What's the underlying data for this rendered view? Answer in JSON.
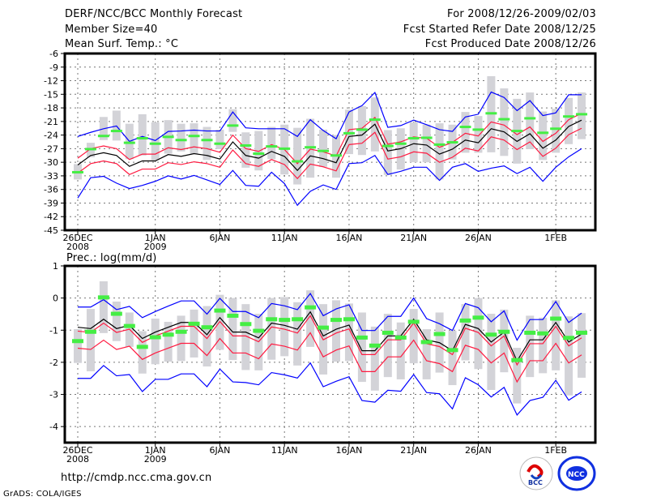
{
  "header": {
    "title": "DERF/NCC/BCC Monthly Forecast",
    "member_size": "Member Size=40",
    "variable": "Mean Surf. Temp.: °C",
    "period": "For 2008/12/26-2009/02/03",
    "started": "Fcst Started Refer Date 2008/12/25",
    "produced": "Fcst Produced Date 2008/12/26"
  },
  "footer": {
    "url": "http://cmdp.ncc.cma.gov.cn",
    "credit": "GrADS: COLA/IGES",
    "logo_left": "BCC",
    "logo_right": "NCC"
  },
  "colors": {
    "mean": "#000000",
    "spread_inner": "#ff1a40",
    "spread_outer": "#0000ff",
    "median": "#44ee44",
    "box": "#d3d3d8"
  },
  "chart_data": [
    {
      "type": "line",
      "title": "Mean Surf. Temp.: °C",
      "ylim": [
        -45,
        -6
      ],
      "yticks": [
        -6,
        -9,
        -12,
        -15,
        -18,
        -21,
        -24,
        -27,
        -30,
        -33,
        -36,
        -39,
        -42,
        -45
      ],
      "xticks": [
        {
          "day": 0,
          "label": "26DEC",
          "sub": "2008"
        },
        {
          "day": 6,
          "label": "1JAN",
          "sub": "2009"
        },
        {
          "day": 11,
          "label": "6JAN",
          "sub": ""
        },
        {
          "day": 16,
          "label": "11JAN",
          "sub": ""
        },
        {
          "day": 21,
          "label": "16JAN",
          "sub": ""
        },
        {
          "day": 26,
          "label": "21JAN",
          "sub": ""
        },
        {
          "day": 31,
          "label": "26JAN",
          "sub": ""
        },
        {
          "day": 37,
          "label": "1FEB",
          "sub": ""
        }
      ],
      "series": [
        {
          "name": "mean",
          "values": [
            -30.6,
            -28.5,
            -27.9,
            -28.5,
            -30.9,
            -29.7,
            -29.7,
            -28.3,
            -28.7,
            -28.1,
            -28.5,
            -29.3,
            -25.5,
            -28.5,
            -29.1,
            -27.6,
            -28.7,
            -31.8,
            -28.6,
            -29.2,
            -30.1,
            -24.3,
            -24.0,
            -21.6,
            -27.5,
            -27.0,
            -25.9,
            -26.2,
            -28.2,
            -27.1,
            -25.1,
            -25.7,
            -22.6,
            -23.3,
            -25.4,
            -23.7,
            -26.9,
            -25.1,
            -22.1,
            -20.7
          ]
        },
        {
          "name": "inner_upper",
          "values": [
            -29.1,
            -27.0,
            -26.4,
            -27.0,
            -29.4,
            -28.2,
            -28.2,
            -26.8,
            -27.2,
            -26.6,
            -27.0,
            -27.8,
            -24.0,
            -27.0,
            -27.6,
            -26.1,
            -27.2,
            -30.3,
            -27.1,
            -27.7,
            -28.6,
            -22.8,
            -22.5,
            -20.1,
            -26.0,
            -25.5,
            -24.4,
            -24.7,
            -26.7,
            -25.6,
            -23.6,
            -24.2,
            -21.1,
            -21.8,
            -23.9,
            -22.2,
            -25.4,
            -23.6,
            -20.6,
            -19.2
          ]
        },
        {
          "name": "inner_lower",
          "values": [
            -32.4,
            -30.3,
            -29.7,
            -30.3,
            -32.7,
            -31.5,
            -31.5,
            -30.1,
            -30.5,
            -29.9,
            -30.3,
            -31.1,
            -27.3,
            -30.3,
            -30.9,
            -29.4,
            -30.5,
            -33.6,
            -30.4,
            -31.0,
            -31.9,
            -26.1,
            -25.8,
            -23.4,
            -29.3,
            -28.8,
            -27.7,
            -28.0,
            -30.0,
            -28.9,
            -26.9,
            -27.5,
            -24.4,
            -25.1,
            -27.2,
            -25.5,
            -28.7,
            -26.9,
            -23.9,
            -22.5
          ]
        },
        {
          "name": "outer_upper",
          "values": [
            -24.3,
            -23.4,
            -22.6,
            -22.0,
            -25.4,
            -24.3,
            -25.2,
            -23.2,
            -23.1,
            -22.9,
            -23.1,
            -23.1,
            -18.9,
            -22.4,
            -22.6,
            -22.6,
            -22.6,
            -24.3,
            -20.6,
            -23.0,
            -24.8,
            -18.9,
            -17.5,
            -14.6,
            -22.3,
            -21.9,
            -20.7,
            -21.7,
            -22.8,
            -23.2,
            -20.0,
            -19.4,
            -14.5,
            -15.7,
            -18.6,
            -16.4,
            -19.7,
            -19.1,
            -15.1,
            -15.1
          ]
        },
        {
          "name": "outer_lower",
          "values": [
            -37.9,
            -33.4,
            -33.1,
            -34.6,
            -35.8,
            -35.1,
            -34.2,
            -33.0,
            -33.7,
            -32.9,
            -33.9,
            -34.9,
            -31.8,
            -35.1,
            -35.3,
            -32.2,
            -34.7,
            -39.5,
            -36.4,
            -35.0,
            -36.0,
            -30.3,
            -30.1,
            -28.5,
            -32.7,
            -32.0,
            -31.1,
            -31.1,
            -34.0,
            -31.1,
            -30.3,
            -32.0,
            -31.3,
            -30.8,
            -32.5,
            -31.1,
            -34.2,
            -31.1,
            -28.8,
            -27.0
          ]
        },
        {
          "name": "median",
          "values": [
            -32.2,
            -27.1,
            -24.2,
            -23.1,
            -25.7,
            -24.7,
            -25.9,
            -24.4,
            -25.1,
            -24.2,
            -25.1,
            -25.9,
            -21.9,
            -26.3,
            -28.1,
            -26.5,
            -27.0,
            -29.8,
            -26.7,
            -27.5,
            -28.5,
            -23.6,
            -22.8,
            -20.6,
            -26.4,
            -25.9,
            -24.7,
            -24.6,
            -26.1,
            -25.6,
            -22.2,
            -22.8,
            -19.2,
            -20.5,
            -23.1,
            -20.3,
            -23.5,
            -22.6,
            -19.9,
            -19.4
          ]
        }
      ],
      "box_high": [
        -30.4,
        -25.7,
        -20.0,
        -18.6,
        -21.5,
        -19.4,
        -21.2,
        -20.7,
        -21.5,
        -21.4,
        -22.2,
        -22.8,
        -18.3,
        -23.4,
        -23.1,
        -22.2,
        -21.7,
        -22.4,
        -20.4,
        -22.8,
        -24.0,
        -18.4,
        -17.6,
        -15.7,
        -22.9,
        -22.5,
        -21.2,
        -21.7,
        -21.4,
        -21.7,
        -18.9,
        -19.8,
        -11.0,
        -13.7,
        -16.0,
        -14.6,
        -18.8,
        -18.2,
        -15.8,
        -14.6
      ],
      "box_low": [
        -33.8,
        -28.9,
        -25.1,
        -25.2,
        -29.3,
        -28.5,
        -29.5,
        -28.1,
        -27.6,
        -28.1,
        -29.5,
        -27.1,
        -23.3,
        -31.2,
        -31.8,
        -29.3,
        -32.7,
        -34.9,
        -33.4,
        -31.0,
        -33.4,
        -28.2,
        -28.4,
        -27.6,
        -32.8,
        -31.6,
        -30.0,
        -30.0,
        -33.8,
        -29.4,
        -27.9,
        -27.9,
        -27.8,
        -28.6,
        -30.3,
        -27.1,
        -29.5,
        -27.9,
        -26.0,
        -24.9
      ]
    },
    {
      "type": "line",
      "title": "Prec.: log(mm/d)",
      "ylim": [
        -4.5,
        1
      ],
      "yticks": [
        1,
        0,
        -1,
        -2,
        -3,
        -4
      ],
      "xticks": [
        {
          "day": 0,
          "label": "26DEC",
          "sub": "2008"
        },
        {
          "day": 6,
          "label": "1JAN",
          "sub": "2009"
        },
        {
          "day": 11,
          "label": "6JAN",
          "sub": ""
        },
        {
          "day": 16,
          "label": "11JAN",
          "sub": ""
        },
        {
          "day": 21,
          "label": "16JAN",
          "sub": ""
        },
        {
          "day": 26,
          "label": "21JAN",
          "sub": ""
        },
        {
          "day": 31,
          "label": "26JAN",
          "sub": ""
        },
        {
          "day": 37,
          "label": "1FEB",
          "sub": ""
        }
      ],
      "series": [
        {
          "name": "mean",
          "values": [
            -0.91,
            -0.95,
            -0.66,
            -0.95,
            -0.85,
            -1.26,
            -1.06,
            -0.91,
            -0.76,
            -0.76,
            -1.14,
            -0.61,
            -1.06,
            -1.06,
            -1.24,
            -0.78,
            -0.85,
            -0.97,
            -0.43,
            -1.18,
            -0.97,
            -0.84,
            -1.64,
            -1.64,
            -1.18,
            -1.18,
            -0.66,
            -1.3,
            -1.39,
            -1.64,
            -0.82,
            -0.95,
            -1.37,
            -1.06,
            -1.96,
            -1.3,
            -1.3,
            -0.76,
            -1.37,
            -1.12
          ]
        },
        {
          "name": "inner_upper",
          "values": [
            -1.03,
            -1.07,
            -0.78,
            -1.07,
            -0.97,
            -1.38,
            -1.18,
            -1.03,
            -0.88,
            -0.88,
            -1.26,
            -0.73,
            -1.18,
            -1.18,
            -1.36,
            -0.9,
            -0.97,
            -1.09,
            -0.55,
            -1.3,
            -1.09,
            -0.96,
            -1.76,
            -1.76,
            -1.3,
            -1.3,
            -0.78,
            -1.42,
            -1.51,
            -1.76,
            -0.94,
            -1.07,
            -1.49,
            -1.18,
            -2.08,
            -1.42,
            -1.42,
            -0.88,
            -1.49,
            -1.24
          ]
        },
        {
          "name": "inner_lower",
          "values": [
            -1.56,
            -1.6,
            -1.31,
            -1.6,
            -1.5,
            -1.91,
            -1.71,
            -1.56,
            -1.41,
            -1.41,
            -1.79,
            -1.26,
            -1.71,
            -1.71,
            -1.89,
            -1.43,
            -1.5,
            -1.62,
            -1.08,
            -1.83,
            -1.62,
            -1.49,
            -2.29,
            -2.29,
            -1.83,
            -1.83,
            -1.31,
            -1.95,
            -2.04,
            -2.29,
            -1.47,
            -1.6,
            -2.02,
            -1.71,
            -2.61,
            -1.95,
            -1.95,
            -1.41,
            -2.02,
            -1.77
          ]
        },
        {
          "name": "outer_upper",
          "values": [
            -0.28,
            -0.28,
            -0.05,
            -0.36,
            -0.26,
            -0.61,
            -0.42,
            -0.25,
            -0.09,
            -0.09,
            -0.5,
            -0.01,
            -0.42,
            -0.42,
            -0.61,
            -0.17,
            -0.24,
            -0.36,
            0.14,
            -0.55,
            -0.34,
            -0.21,
            -1.01,
            -1.01,
            -0.57,
            -0.57,
            0.0,
            -0.64,
            -0.8,
            -1.01,
            -0.17,
            -0.3,
            -0.74,
            -0.4,
            -1.31,
            -0.67,
            -0.67,
            -0.11,
            -0.76,
            -0.47
          ]
        },
        {
          "name": "outer_lower",
          "values": [
            -2.5,
            -2.5,
            -2.1,
            -2.42,
            -2.38,
            -2.91,
            -2.53,
            -2.53,
            -2.36,
            -2.36,
            -2.76,
            -2.21,
            -2.61,
            -2.63,
            -2.7,
            -2.32,
            -2.39,
            -2.49,
            -2.02,
            -2.76,
            -2.59,
            -2.45,
            -3.19,
            -3.24,
            -2.87,
            -2.9,
            -2.38,
            -2.94,
            -2.98,
            -3.45,
            -2.48,
            -2.7,
            -3.08,
            -2.78,
            -3.64,
            -3.19,
            -3.09,
            -2.56,
            -3.18,
            -2.92
          ]
        },
        {
          "name": "median",
          "values": [
            -1.34,
            -1.05,
            0.02,
            -0.49,
            -0.87,
            -1.52,
            -1.22,
            -1.14,
            -1.05,
            -0.8,
            -0.91,
            -0.39,
            -0.55,
            -0.81,
            -1.02,
            -0.66,
            -0.68,
            -0.66,
            -0.29,
            -0.92,
            -0.68,
            -0.66,
            -1.23,
            -1.48,
            -1.08,
            -1.23,
            -0.74,
            -1.37,
            -1.12,
            -1.62,
            -0.7,
            -0.61,
            -1.14,
            -1.05,
            -1.93,
            -1.08,
            -1.1,
            -0.64,
            -1.24,
            -1.08
          ]
        }
      ],
      "box_high": [
        -0.97,
        -0.34,
        0.52,
        -0.11,
        -0.45,
        -1.03,
        -0.64,
        -0.74,
        -0.55,
        -0.36,
        -0.25,
        0.1,
        0.0,
        -0.19,
        -0.49,
        0.0,
        0.03,
        -0.13,
        0.24,
        -0.19,
        -0.07,
        -0.17,
        -0.45,
        -0.89,
        -0.49,
        -0.76,
        -0.34,
        -0.97,
        -0.45,
        -1.02,
        -0.19,
        0.0,
        -0.49,
        -0.36,
        -1.55,
        -0.55,
        -0.61,
        -0.07,
        -0.57,
        -0.47
      ],
      "box_low": [
        -2.02,
        -2.28,
        -1.09,
        -1.34,
        -1.52,
        -2.35,
        -2.06,
        -1.98,
        -1.96,
        -1.85,
        -2.13,
        -1.61,
        -1.93,
        -2.24,
        -2.25,
        -1.92,
        -1.81,
        -2.1,
        -1.52,
        -2.38,
        -1.98,
        -1.96,
        -2.61,
        -2.88,
        -2.46,
        -2.53,
        -2.03,
        -2.53,
        -2.32,
        -2.71,
        -1.94,
        -2.21,
        -2.86,
        -2.31,
        -3.28,
        -2.46,
        -2.34,
        -2.25,
        -3.03,
        -2.48
      ]
    }
  ]
}
